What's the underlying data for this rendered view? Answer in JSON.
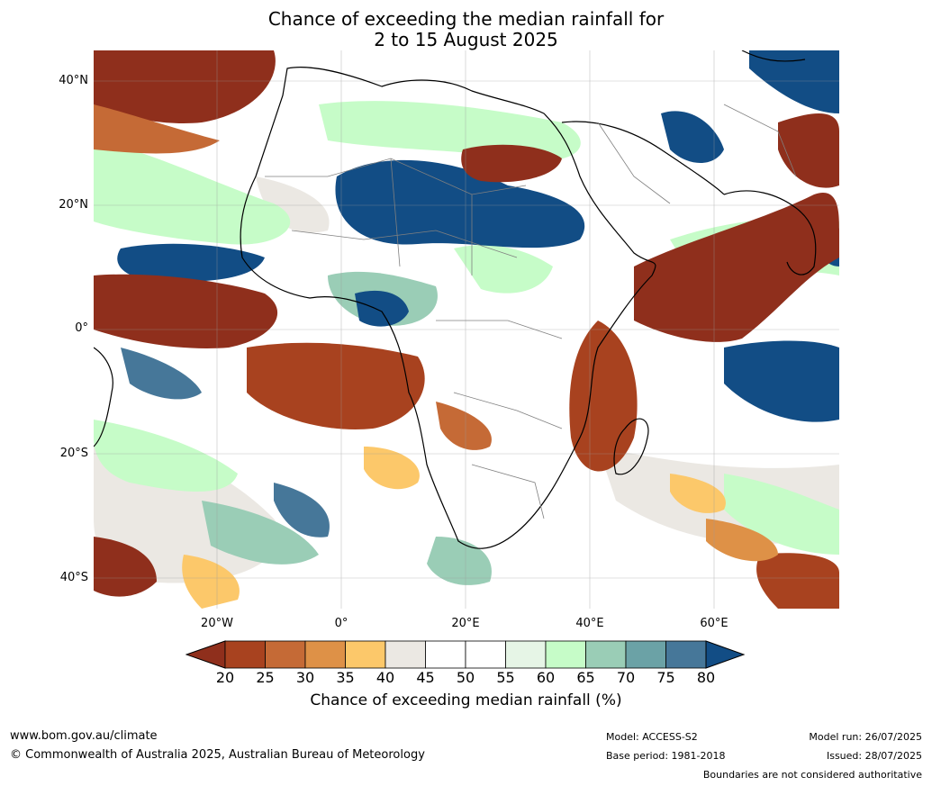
{
  "title": {
    "line1": "Chance of exceeding the median rainfall for",
    "line2": "2 to 15 August 2025"
  },
  "map": {
    "lat_labels": [
      "40°N",
      "20°N",
      "0°",
      "20°S",
      "40°S"
    ],
    "lon_labels": [
      "20°W",
      "0°",
      "20°E",
      "40°E",
      "60°E"
    ]
  },
  "colorbar": {
    "ticks": [
      "20",
      "25",
      "30",
      "35",
      "40",
      "45",
      "50",
      "55",
      "60",
      "65",
      "70",
      "75",
      "80"
    ],
    "colors": [
      "#8f2f1c",
      "#a8421f",
      "#c56a36",
      "#de9147",
      "#fcc86a",
      "#ebe8e3",
      "#ffffff",
      "#ffffff",
      "#e6f5e6",
      "#c6fcc8",
      "#9acdb6",
      "#6ba2a6",
      "#467799",
      "#124d85"
    ],
    "title": "Chance of exceeding median rainfall (%)"
  },
  "footer": {
    "website": "www.bom.gov.au/climate",
    "copyright": "© Commonwealth of Australia 2025, Australian Bureau of Meteorology",
    "model": "Model: ACCESS-S2",
    "base_period": "Base period: 1981-2018",
    "model_run": "Model run: 26/07/2025",
    "issued": "Issued: 28/07/2025",
    "disclaimer": "Boundaries are not considered authoritative"
  }
}
